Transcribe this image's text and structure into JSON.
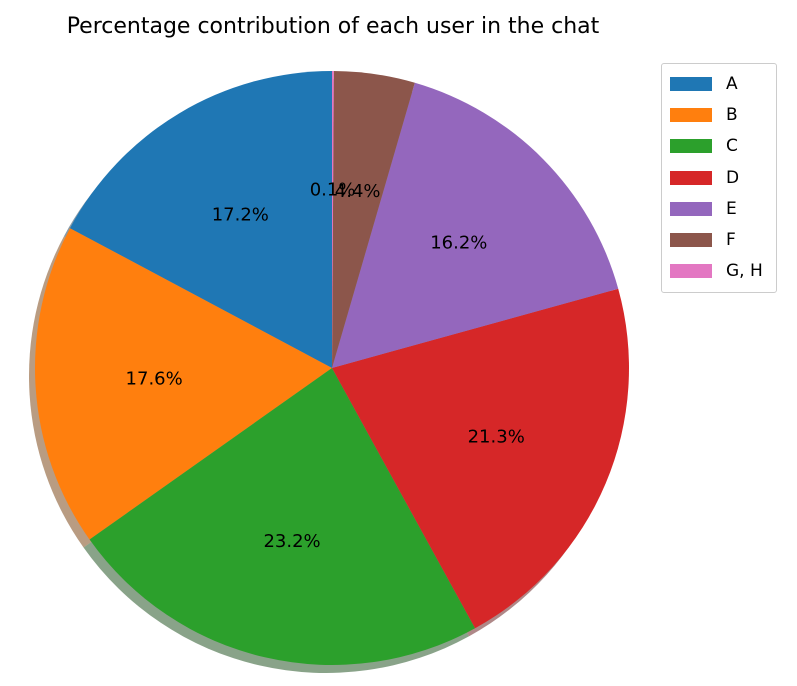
{
  "chart_data": {
    "type": "pie",
    "title": "Percentage contribution of each user in the chat",
    "slices": [
      {
        "label": "A",
        "value": 17.2,
        "pct_label": "17.2%",
        "color": "#1f77b4"
      },
      {
        "label": "B",
        "value": 17.6,
        "pct_label": "17.6%",
        "color": "#ff7f0e"
      },
      {
        "label": "C",
        "value": 23.2,
        "pct_label": "23.2%",
        "color": "#2ca02c"
      },
      {
        "label": "D",
        "value": 21.3,
        "pct_label": "21.3%",
        "color": "#d62728"
      },
      {
        "label": "E",
        "value": 16.2,
        "pct_label": "16.2%",
        "color": "#9467bd"
      },
      {
        "label": "F",
        "value": 4.4,
        "pct_label": "4.4%",
        "color": "#8c564b"
      },
      {
        "label": "G, H",
        "value": 0.1,
        "pct_label": "0.1%",
        "color": "#e377c2"
      }
    ],
    "start_angle_deg": 90,
    "direction": "counterclockwise",
    "shadow": true,
    "legend_position": "top-right"
  }
}
